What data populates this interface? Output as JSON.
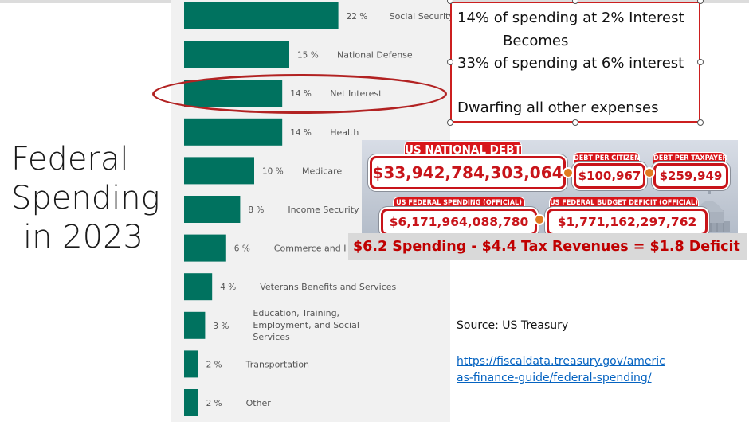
{
  "slide": {
    "title_lines": [
      "Federal",
      "Spending",
      "in 2023"
    ]
  },
  "chart_data": {
    "type": "bar",
    "orientation": "horizontal",
    "categories": [
      "Social Security",
      "National Defense",
      "Net Interest",
      "Health",
      "Medicare",
      "Income Security",
      "Commerce and Housing Credit",
      "Veterans Benefits and Services",
      "Education, Training, Employment, and Social Services",
      "Transportation",
      "Other"
    ],
    "visible_category_labels": [
      "Social Security",
      "National Defense",
      "Net Interest",
      "Health",
      "Medicare",
      "Income Security",
      "Commerce and H",
      "Veterans Benefits and Services",
      "Education, Training, Employment, and Social Services",
      "Transportation",
      "Other"
    ],
    "values": [
      22,
      15,
      14,
      14,
      10,
      8,
      6,
      4,
      3,
      2,
      2
    ],
    "value_labels": [
      "22 %",
      "15 %",
      "14 %",
      "14 %",
      "10 %",
      "8 %",
      "6 %",
      "4 %",
      "3 %",
      "2 %",
      "2 %"
    ],
    "bar_color": "#00725f",
    "highlighted_category": "Net Interest",
    "highlight_color": "#b22222"
  },
  "note": {
    "line1": "14% of spending at 2% Interest",
    "line2": "Becomes",
    "line3": "33% of spending at 6% interest",
    "line4": "Dwarfing all other expenses"
  },
  "debt_clock": {
    "national_debt_label": "US NATIONAL DEBT",
    "national_debt": "$33,942,784,303,064",
    "per_citizen_label": "DEBT PER CITIZEN",
    "per_citizen": "$100,967",
    "per_taxpayer_label": "DEBT PER TAXPAYER",
    "per_taxpayer": "$259,949",
    "spending_label": "US FEDERAL SPENDING (OFFICIAL)",
    "spending": "$6,171,964,088,780",
    "deficit_label": "US FEDERAL BUDGET DEFICIT (OFFICIAL)",
    "deficit": "$1,771,162,297,762"
  },
  "deficit_summary": "$6.2 Spending - $4.4 Tax Revenues = $1.8 Deficit",
  "source": {
    "text": "Source: US Treasury",
    "link_line1": "https://fiscaldata.treasury.gov/americ",
    "link_line2": "as-finance-guide/federal-spending/"
  },
  "colors": {
    "accent_red": "#c00000",
    "banner_red": "#d8161b",
    "link_blue": "#0563c1"
  }
}
